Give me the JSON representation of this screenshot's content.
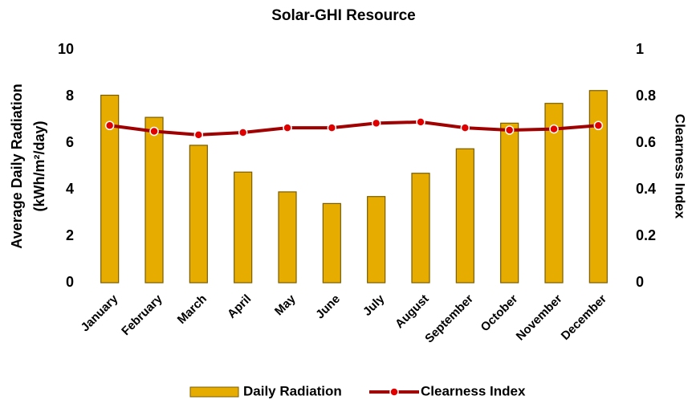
{
  "chart_data": {
    "type": "bar_line",
    "title": "Solar-GHI Resource",
    "ylabel": [
      "Average Daily Radiation",
      "(kWh/m²/day)"
    ],
    "y2label": "Clearness Index",
    "categories": [
      "January",
      "February",
      "March",
      "April",
      "May",
      "June",
      "July",
      "August",
      "September",
      "October",
      "November",
      "December"
    ],
    "series": [
      {
        "name": "Daily Radiation",
        "type": "bar",
        "color": "#e6ac00",
        "values": [
          8.05,
          7.1,
          5.9,
          4.75,
          3.9,
          3.4,
          3.7,
          4.7,
          5.75,
          6.85,
          7.7,
          8.25
        ]
      },
      {
        "name": "Clearness Index",
        "type": "line",
        "axis": "y2",
        "color": "#a00000",
        "values": [
          0.675,
          0.65,
          0.635,
          0.645,
          0.665,
          0.665,
          0.685,
          0.69,
          0.665,
          0.655,
          0.66,
          0.675
        ]
      }
    ],
    "ylim": [
      0,
      10
    ],
    "yticks": [
      0,
      2,
      4,
      6,
      8,
      10
    ],
    "y2lim": [
      0,
      1
    ],
    "y2ticks": [
      0,
      0.2,
      0.4,
      0.6,
      0.8,
      1
    ],
    "legend": "bottom"
  }
}
